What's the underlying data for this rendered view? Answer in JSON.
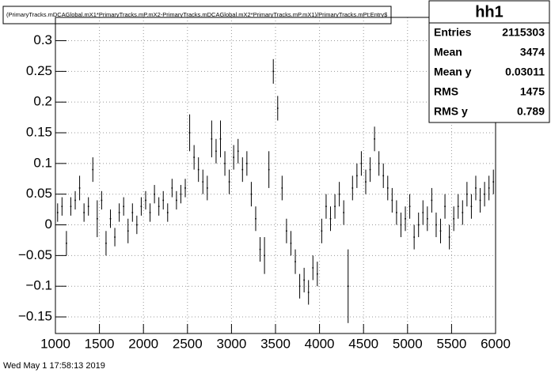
{
  "chart_data": {
    "type": "errorbar",
    "title": "(PrimaryTracks.mDCAGlobal.mX1*PrimaryTracks.mP.mX2-PrimaryTracks.mDCAGlobal.mX2*PrimaryTracks.mP.mX1)/PrimaryTracks.mPt:Entry$",
    "footer": "Wed May  1 17:58:13 2019",
    "color": "#000000",
    "grid": true,
    "xlim": [
      1000,
      6000
    ],
    "ylim": [
      -0.177,
      0.338
    ],
    "xticks": [
      1000,
      1500,
      2000,
      2500,
      3000,
      3500,
      4000,
      4500,
      5000,
      5500,
      6000
    ],
    "yticks": [
      {
        "value": -0.15,
        "label": "−0.15"
      },
      {
        "value": -0.1,
        "label": "−0.1"
      },
      {
        "value": -0.05,
        "label": "−0.05"
      },
      0,
      0.05,
      0.1,
      0.15,
      0.2,
      0.25,
      0.3
    ],
    "x": [
      1025,
      1075,
      1125,
      1175,
      1225,
      1275,
      1325,
      1375,
      1425,
      1475,
      1525,
      1575,
      1625,
      1675,
      1725,
      1775,
      1825,
      1875,
      1925,
      1975,
      2025,
      2075,
      2125,
      2175,
      2225,
      2275,
      2325,
      2375,
      2425,
      2475,
      2525,
      2575,
      2625,
      2675,
      2725,
      2775,
      2825,
      2875,
      2925,
      2975,
      3025,
      3075,
      3125,
      3175,
      3225,
      3275,
      3325,
      3375,
      3425,
      3475,
      3525,
      3575,
      3625,
      3675,
      3725,
      3775,
      3825,
      3875,
      3925,
      3975,
      4025,
      4075,
      4125,
      4175,
      4225,
      4275,
      4325,
      4375,
      4425,
      4475,
      4525,
      4575,
      4625,
      4675,
      4725,
      4775,
      4825,
      4875,
      4925,
      4975,
      5025,
      5075,
      5125,
      5175,
      5225,
      5275,
      5325,
      5375,
      5425,
      5475,
      5525,
      5575,
      5625,
      5675,
      5725,
      5775,
      5825,
      5875,
      5925,
      5975
    ],
    "values": [
      0.02,
      0.03,
      -0.03,
      0.03,
      0.04,
      0.06,
      0.02,
      0.03,
      0.09,
      0.01,
      0.04,
      -0.03,
      0.01,
      -0.02,
      0.02,
      0.03,
      -0.01,
      0.02,
      0.0,
      0.03,
      0.04,
      0.02,
      0.05,
      0.03,
      0.04,
      0.02,
      0.06,
      0.04,
      0.05,
      0.06,
      0.15,
      0.11,
      0.09,
      0.07,
      0.06,
      0.14,
      0.12,
      0.14,
      0.1,
      0.07,
      0.11,
      0.12,
      0.09,
      0.1,
      0.05,
      0.01,
      -0.04,
      -0.05,
      0.09,
      0.25,
      0.19,
      0.06,
      -0.01,
      -0.03,
      -0.06,
      -0.1,
      -0.09,
      -0.11,
      -0.07,
      -0.08,
      -0.01,
      0.03,
      0.01,
      0.03,
      0.05,
      0.02,
      -0.1,
      0.06,
      0.08,
      0.1,
      0.07,
      0.09,
      0.14,
      0.1,
      0.08,
      0.06,
      0.04,
      0.02,
      0.0,
      0.01,
      0.03,
      -0.02,
      0.0,
      0.02,
      0.01,
      0.04,
      0.0,
      -0.01,
      0.03,
      -0.02,
      0.01,
      0.03,
      0.02,
      0.05,
      0.03,
      0.06,
      0.04,
      0.05,
      0.06,
      0.07
    ],
    "errors": [
      0.015,
      0.015,
      0.02,
      0.015,
      0.015,
      0.02,
      0.015,
      0.015,
      0.02,
      0.03,
      0.015,
      0.02,
      0.015,
      0.015,
      0.015,
      0.015,
      0.02,
      0.015,
      0.015,
      0.015,
      0.015,
      0.015,
      0.015,
      0.015,
      0.015,
      0.015,
      0.015,
      0.015,
      0.015,
      0.015,
      0.03,
      0.02,
      0.02,
      0.02,
      0.02,
      0.03,
      0.02,
      0.03,
      0.02,
      0.02,
      0.02,
      0.02,
      0.02,
      0.02,
      0.02,
      0.02,
      0.02,
      0.03,
      0.03,
      0.02,
      0.02,
      0.02,
      0.02,
      0.02,
      0.02,
      0.02,
      0.02,
      0.02,
      0.02,
      0.02,
      0.02,
      0.02,
      0.02,
      0.02,
      0.02,
      0.02,
      0.06,
      0.02,
      0.02,
      0.02,
      0.02,
      0.02,
      0.02,
      0.02,
      0.02,
      0.02,
      0.02,
      0.02,
      0.02,
      0.02,
      0.02,
      0.02,
      0.02,
      0.02,
      0.02,
      0.02,
      0.02,
      0.02,
      0.02,
      0.02,
      0.02,
      0.02,
      0.02,
      0.02,
      0.02,
      0.02,
      0.02,
      0.02,
      0.02,
      0.02
    ],
    "stats": {
      "title": "hh1",
      "rows": [
        {
          "label": "Entries",
          "value": 2115303
        },
        {
          "label": "Mean",
          "value": 3474
        },
        {
          "label": "Mean y",
          "value": 0.03011
        },
        {
          "label": "RMS",
          "value": 1475
        },
        {
          "label": "RMS y",
          "value": 0.789
        }
      ]
    }
  }
}
